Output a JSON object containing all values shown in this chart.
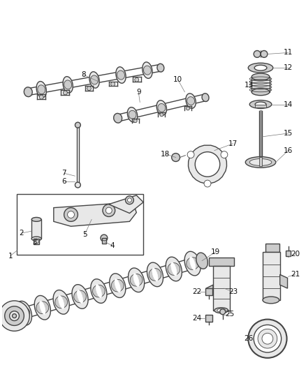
{
  "background_color": "#ffffff",
  "line_color": "#444444",
  "label_color": "#111111",
  "label_fontsize": 7.5,
  "lw_main": 1.0,
  "lw_thin": 0.6,
  "gray_fill": "#cccccc",
  "gray_dark": "#999999",
  "gray_light": "#e8e8e8"
}
